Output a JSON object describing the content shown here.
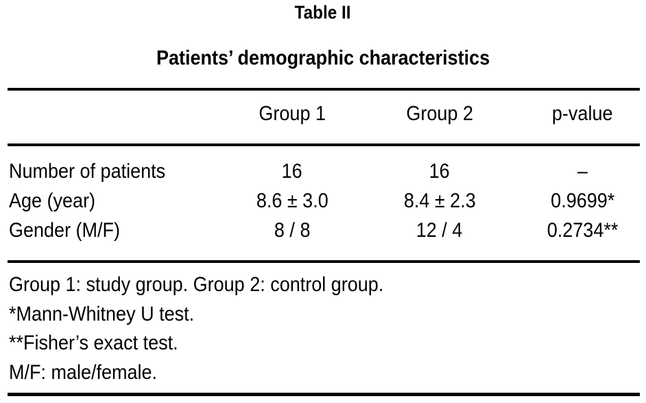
{
  "table": {
    "label": "Table II",
    "title": "Patients’ demographic characteristics",
    "columns": {
      "stub": "",
      "group1": "Group 1",
      "group2": "Group 2",
      "pvalue": "p-value"
    },
    "rows": [
      {
        "label": "Number of patients",
        "group1": "16",
        "group2": "16",
        "pvalue": "–"
      },
      {
        "label": "Age (year)",
        "group1": "8.6 ± 3.0",
        "group2": "8.4 ± 2.3",
        "pvalue": "0.9699*"
      },
      {
        "label": "Gender (M/F)",
        "group1": "8 / 8",
        "group2": "12 / 4",
        "pvalue": "0.2734**"
      }
    ],
    "footnotes": [
      "Group 1: study group. Group 2: control group.",
      "*Mann-Whitney U test.",
      "**Fisher’s exact test.",
      "M/F: male/female."
    ]
  },
  "colors": {
    "text": "#000000",
    "background": "#ffffff",
    "rule": "#000000"
  }
}
